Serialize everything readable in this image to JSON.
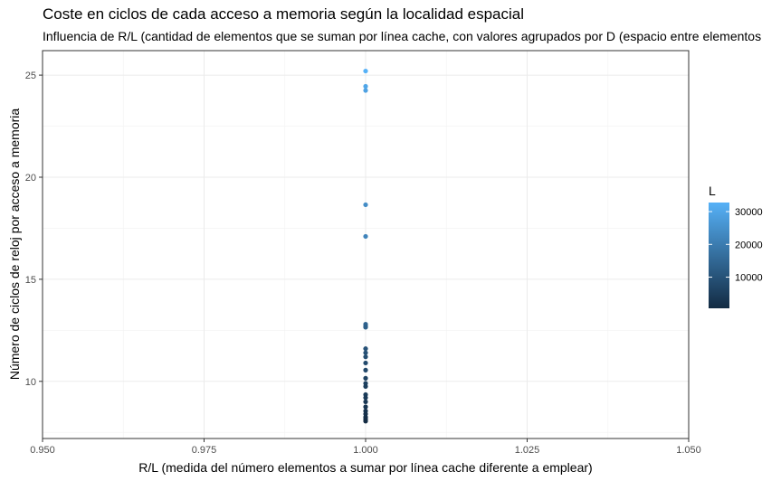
{
  "chart_data": {
    "type": "scatter",
    "title": "Coste en ciclos de cada acceso a memoria según la localidad espacial",
    "subtitle": "Influencia de R/L (cantidad de elementos que se suman por línea cache, con valores agrupados por D (espacio entre elementos",
    "xlabel": "R/L (medida del número elementos a sumar por línea cache diferente a emplear)",
    "ylabel": "Número de ciclos de reloj por acceso a memoria",
    "xlim": [
      0.95,
      1.05
    ],
    "ylim": [
      7.2,
      26.2
    ],
    "xticks": [
      0.95,
      0.975,
      1.0,
      1.025,
      1.05
    ],
    "xtick_labels": [
      "0.950",
      "0.975",
      "1.000",
      "1.025",
      "1.050"
    ],
    "yticks": [
      10,
      15,
      20,
      25
    ],
    "ytick_labels": [
      "10",
      "15",
      "20",
      "25"
    ],
    "grid": true,
    "legend": {
      "title": "L",
      "position": "right",
      "type": "colorbar",
      "range": [
        500,
        32768
      ],
      "ticks": [
        10000,
        20000,
        30000
      ],
      "tick_labels": [
        "10000",
        "20000",
        "30000"
      ],
      "color_low": "#132b43",
      "color_high": "#56b1f7"
    },
    "points": [
      {
        "x": 1.0,
        "y": 25.2,
        "L": 32768
      },
      {
        "x": 1.0,
        "y": 24.45,
        "L": 30000
      },
      {
        "x": 1.0,
        "y": 24.25,
        "L": 29000
      },
      {
        "x": 1.0,
        "y": 18.65,
        "L": 24000
      },
      {
        "x": 1.0,
        "y": 17.1,
        "L": 22000
      },
      {
        "x": 1.0,
        "y": 12.8,
        "L": 14000
      },
      {
        "x": 1.0,
        "y": 12.7,
        "L": 13500
      },
      {
        "x": 1.0,
        "y": 12.65,
        "L": 13000
      },
      {
        "x": 1.0,
        "y": 11.6,
        "L": 10000
      },
      {
        "x": 1.0,
        "y": 11.4,
        "L": 9500
      },
      {
        "x": 1.0,
        "y": 11.2,
        "L": 9000
      },
      {
        "x": 1.0,
        "y": 10.9,
        "L": 8000
      },
      {
        "x": 1.0,
        "y": 10.55,
        "L": 7500
      },
      {
        "x": 1.0,
        "y": 10.15,
        "L": 6000
      },
      {
        "x": 1.0,
        "y": 9.9,
        "L": 5500
      },
      {
        "x": 1.0,
        "y": 9.75,
        "L": 5000
      },
      {
        "x": 1.0,
        "y": 9.35,
        "L": 4500
      },
      {
        "x": 1.0,
        "y": 9.2,
        "L": 4000
      },
      {
        "x": 1.0,
        "y": 9.0,
        "L": 3500
      },
      {
        "x": 1.0,
        "y": 8.75,
        "L": 3000
      },
      {
        "x": 1.0,
        "y": 8.55,
        "L": 2500
      },
      {
        "x": 1.0,
        "y": 8.4,
        "L": 2000
      },
      {
        "x": 1.0,
        "y": 8.25,
        "L": 1500
      },
      {
        "x": 1.0,
        "y": 8.15,
        "L": 1000
      },
      {
        "x": 1.0,
        "y": 8.05,
        "L": 500
      }
    ]
  }
}
